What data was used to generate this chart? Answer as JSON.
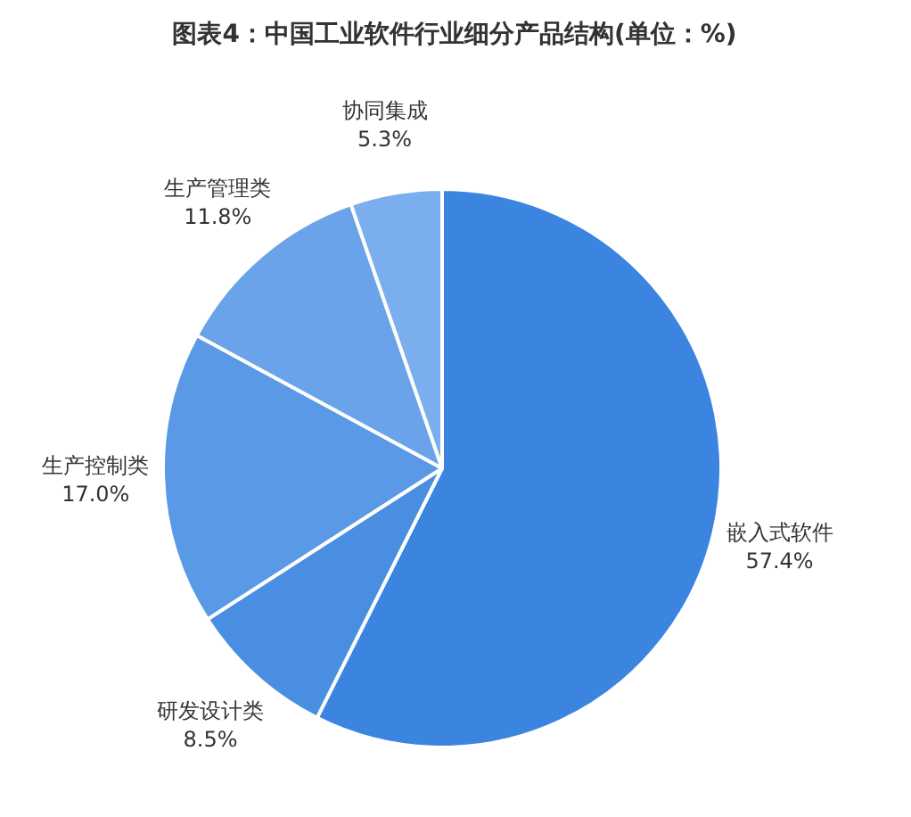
{
  "chart_data": {
    "type": "pie",
    "title": "图表4：中国工业软件行业细分产品结构(单位：%)",
    "categories": [
      "嵌入式软件",
      "研发设计类",
      "生产控制类",
      "生产管理类",
      "协同集成"
    ],
    "values": [
      57.4,
      8.5,
      17.0,
      11.8,
      5.3
    ],
    "colors": [
      "#3b84e0",
      "#4a8ee2",
      "#5a99e6",
      "#6aa3e9",
      "#7aaeed"
    ],
    "value_labels": [
      "57.4%",
      "8.5%",
      "17.0%",
      "11.8%",
      "5.3%"
    ],
    "legend": false
  }
}
